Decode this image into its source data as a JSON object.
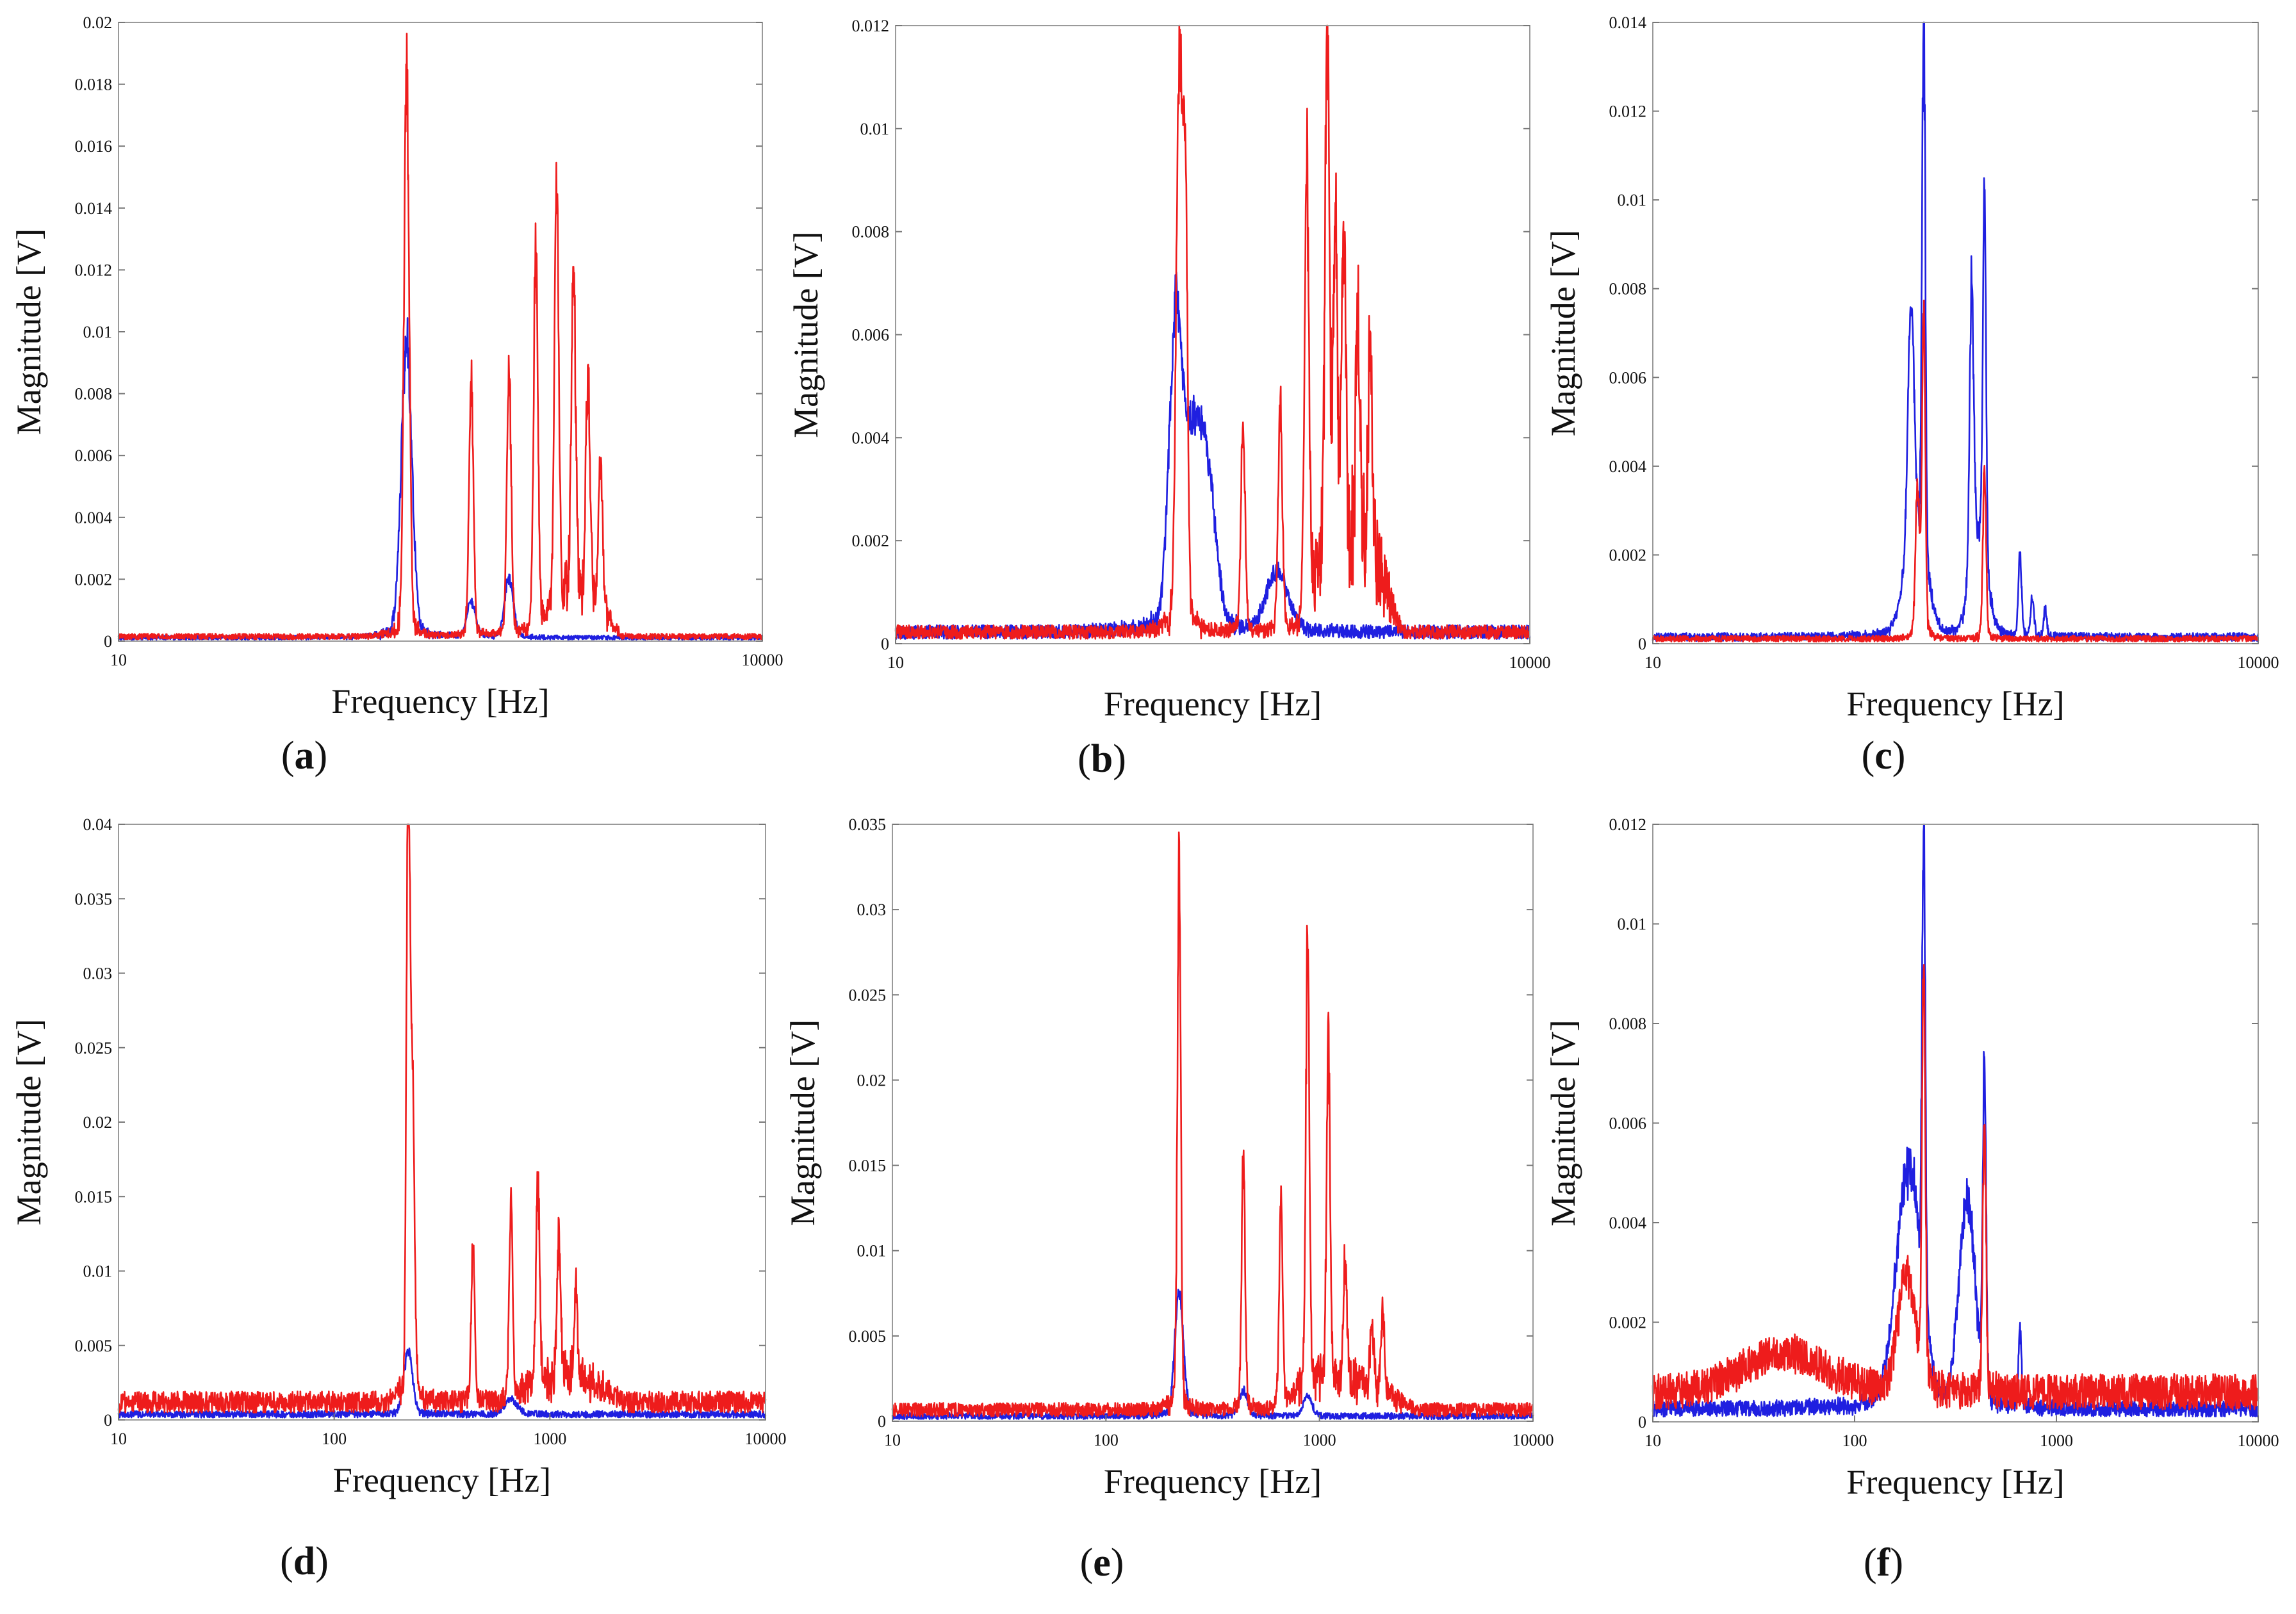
{
  "chart_data": [
    {
      "panel": "(a)",
      "label": "a",
      "type": "line",
      "xlabel": "Frequency [Hz]",
      "ylabel": "Magnitude [V]",
      "xscale": "log",
      "xlim": [
        10,
        10000
      ],
      "ylim": [
        0,
        0.02
      ],
      "xticks": [
        10,
        10000
      ],
      "xtick_labels": [
        "10",
        "10000"
      ],
      "yticks": [
        0,
        0.002,
        0.004,
        0.006,
        0.008,
        0.01,
        0.012,
        0.014,
        0.016,
        0.018,
        0.02
      ],
      "ytick_labels": [
        "0",
        "0.002",
        "0.004",
        "0.006",
        "0.008",
        "0.01",
        "0.012",
        "0.014",
        "0.016",
        "0.018",
        "0.02"
      ],
      "series": [
        {
          "name": "blue",
          "color": "#1f1fe0",
          "noise": 0.00015,
          "peaks": [
            {
              "f": 220,
              "a": 0.0098,
              "w": 0.025
            },
            {
              "f": 440,
              "a": 0.0012,
              "w": 0.02
            },
            {
              "f": 660,
              "a": 0.002,
              "w": 0.02
            }
          ]
        },
        {
          "name": "red",
          "color": "#ee1c1c",
          "noise": 0.0002,
          "peaks": [
            {
              "f": 220,
              "a": 0.0192,
              "w": 0.012
            },
            {
              "f": 440,
              "a": 0.0086,
              "w": 0.01
            },
            {
              "f": 660,
              "a": 0.009,
              "w": 0.01
            },
            {
              "f": 880,
              "a": 0.0129,
              "w": 0.01
            },
            {
              "f": 1100,
              "a": 0.0143,
              "w": 0.01
            },
            {
              "f": 1320,
              "a": 0.0108,
              "w": 0.01
            },
            {
              "f": 1540,
              "a": 0.0069,
              "w": 0.01
            },
            {
              "f": 1760,
              "a": 0.0046,
              "w": 0.01
            }
          ],
          "band": {
            "f1": 900,
            "f2": 2200,
            "a": 0.0015
          }
        }
      ]
    },
    {
      "panel": "(b)",
      "label": "b",
      "type": "line",
      "xlabel": "Frequency [Hz]",
      "ylabel": "Magnitude [V]",
      "xscale": "log",
      "xlim": [
        10,
        10000
      ],
      "ylim": [
        0,
        0.012
      ],
      "xticks": [
        10,
        10000
      ],
      "xtick_labels": [
        "10",
        "10000"
      ],
      "yticks": [
        0,
        0.002,
        0.004,
        0.006,
        0.008,
        0.01,
        0.012
      ],
      "ytick_labels": [
        "0",
        "0.002",
        "0.004",
        "0.006",
        "0.008",
        "0.01",
        "0.012"
      ],
      "series": [
        {
          "name": "blue",
          "color": "#1f1fe0",
          "noise": 0.0003,
          "peaks": [
            {
              "f": 210,
              "a": 0.0052,
              "w": 0.03
            },
            {
              "f": 250,
              "a": 0.0036,
              "w": 0.05
            },
            {
              "f": 300,
              "a": 0.0025,
              "w": 0.04
            },
            {
              "f": 640,
              "a": 0.0012,
              "w": 0.05
            }
          ]
        },
        {
          "name": "red",
          "color": "#ee1c1c",
          "noise": 0.0003,
          "peaks": [
            {
              "f": 220,
              "a": 0.0117,
              "w": 0.014
            },
            {
              "f": 235,
              "a": 0.0085,
              "w": 0.01
            },
            {
              "f": 440,
              "a": 0.0042,
              "w": 0.01
            },
            {
              "f": 660,
              "a": 0.0045,
              "w": 0.01
            },
            {
              "f": 880,
              "a": 0.009,
              "w": 0.01
            },
            {
              "f": 1100,
              "a": 0.0105,
              "w": 0.01
            },
            {
              "f": 1200,
              "a": 0.0065,
              "w": 0.01
            },
            {
              "f": 1320,
              "a": 0.0055,
              "w": 0.01
            },
            {
              "f": 1540,
              "a": 0.0047,
              "w": 0.01
            },
            {
              "f": 1760,
              "a": 0.0044,
              "w": 0.01
            }
          ],
          "band": {
            "f1": 800,
            "f2": 2500,
            "a": 0.0022
          }
        }
      ]
    },
    {
      "panel": "(c)",
      "label": "c",
      "type": "line",
      "xlabel": "Frequency [Hz]",
      "ylabel": "Magnitude [V]",
      "xscale": "log",
      "xlim": [
        10,
        10000
      ],
      "ylim": [
        0,
        0.014
      ],
      "xticks": [
        10,
        10000
      ],
      "xtick_labels": [
        "10",
        "10000"
      ],
      "yticks": [
        0,
        0.002,
        0.004,
        0.006,
        0.008,
        0.01,
        0.012,
        0.014
      ],
      "ytick_labels": [
        "0",
        "0.002",
        "0.004",
        "0.006",
        "0.008",
        "0.01",
        "0.012",
        "0.014"
      ],
      "series": [
        {
          "name": "blue",
          "color": "#1f1fe0",
          "noise": 0.0002,
          "peaks": [
            {
              "f": 190,
              "a": 0.0054,
              "w": 0.015
            },
            {
              "f": 220,
              "a": 0.0129,
              "w": 0.008
            },
            {
              "f": 200,
              "a": 0.0025,
              "w": 0.05
            },
            {
              "f": 380,
              "a": 0.0067,
              "w": 0.01
            },
            {
              "f": 440,
              "a": 0.0085,
              "w": 0.008
            },
            {
              "f": 410,
              "a": 0.0022,
              "w": 0.04
            },
            {
              "f": 660,
              "a": 0.0019,
              "w": 0.008
            },
            {
              "f": 760,
              "a": 0.0009,
              "w": 0.008
            },
            {
              "f": 880,
              "a": 0.0006,
              "w": 0.008
            }
          ]
        },
        {
          "name": "red",
          "color": "#ee1c1c",
          "noise": 0.00015,
          "peaks": [
            {
              "f": 220,
              "a": 0.0075,
              "w": 0.008
            },
            {
              "f": 205,
              "a": 0.0035,
              "w": 0.01
            },
            {
              "f": 440,
              "a": 0.0039,
              "w": 0.008
            }
          ]
        }
      ]
    },
    {
      "panel": "(d)",
      "label": "d",
      "type": "line",
      "xlabel": "Frequency [Hz]",
      "ylabel": "Magnitude [V]",
      "xscale": "log",
      "xlim": [
        10,
        10000
      ],
      "ylim": [
        0,
        0.04
      ],
      "xticks": [
        10,
        100,
        1000,
        10000
      ],
      "xtick_labels": [
        "10",
        "100",
        "1000",
        "10000"
      ],
      "yticks": [
        0,
        0.005,
        0.01,
        0.015,
        0.02,
        0.025,
        0.03,
        0.035,
        0.04
      ],
      "ytick_labels": [
        "0",
        "0.005",
        "0.01",
        "0.015",
        "0.02",
        "0.025",
        "0.03",
        "0.035",
        "0.04"
      ],
      "series": [
        {
          "name": "blue",
          "color": "#1f1fe0",
          "noise": 0.0005,
          "peaks": [
            {
              "f": 220,
              "a": 0.0045,
              "w": 0.02
            },
            {
              "f": 660,
              "a": 0.001,
              "w": 0.03
            }
          ]
        },
        {
          "name": "red",
          "color": "#ee1c1c",
          "noise": 0.0016,
          "peaks": [
            {
              "f": 220,
              "a": 0.0394,
              "w": 0.008
            },
            {
              "f": 230,
              "a": 0.022,
              "w": 0.01
            },
            {
              "f": 440,
              "a": 0.0112,
              "w": 0.008
            },
            {
              "f": 660,
              "a": 0.0137,
              "w": 0.008
            },
            {
              "f": 880,
              "a": 0.014,
              "w": 0.008
            },
            {
              "f": 1100,
              "a": 0.0102,
              "w": 0.008
            },
            {
              "f": 1320,
              "a": 0.0062,
              "w": 0.008
            }
          ],
          "band": {
            "f1": 600,
            "f2": 2200,
            "a": 0.002
          }
        }
      ]
    },
    {
      "panel": "(e)",
      "label": "e",
      "type": "line",
      "xlabel": "Frequency [Hz]",
      "ylabel": "Magnitude [V]",
      "xscale": "log",
      "xlim": [
        10,
        10000
      ],
      "ylim": [
        0,
        0.035
      ],
      "xticks": [
        10,
        100,
        1000,
        10000
      ],
      "xtick_labels": [
        "10",
        "100",
        "1000",
        "10000"
      ],
      "yticks": [
        0,
        0.005,
        0.01,
        0.015,
        0.02,
        0.025,
        0.03,
        0.035
      ],
      "ytick_labels": [
        "0",
        "0.005",
        "0.01",
        "0.015",
        "0.02",
        "0.025",
        "0.03",
        "0.035"
      ],
      "series": [
        {
          "name": "blue",
          "color": "#1f1fe0",
          "noise": 0.0004,
          "peaks": [
            {
              "f": 220,
              "a": 0.0075,
              "w": 0.02
            },
            {
              "f": 440,
              "a": 0.0015,
              "w": 0.02
            },
            {
              "f": 880,
              "a": 0.0012,
              "w": 0.02
            }
          ]
        },
        {
          "name": "red",
          "color": "#ee1c1c",
          "noise": 0.0009,
          "peaks": [
            {
              "f": 220,
              "a": 0.0325,
              "w": 0.008
            },
            {
              "f": 440,
              "a": 0.0155,
              "w": 0.008
            },
            {
              "f": 660,
              "a": 0.0125,
              "w": 0.008
            },
            {
              "f": 880,
              "a": 0.0277,
              "w": 0.008
            },
            {
              "f": 1100,
              "a": 0.0208,
              "w": 0.008
            },
            {
              "f": 1320,
              "a": 0.0072,
              "w": 0.008
            },
            {
              "f": 1760,
              "a": 0.0042,
              "w": 0.008
            },
            {
              "f": 1980,
              "a": 0.0045,
              "w": 0.008
            }
          ],
          "band": {
            "f1": 600,
            "f2": 2800,
            "a": 0.002
          }
        }
      ]
    },
    {
      "panel": "(f)",
      "label": "f",
      "type": "line",
      "xlabel": "Frequency [Hz]",
      "ylabel": "Magnitude [V]",
      "xscale": "log",
      "xlim": [
        10,
        10000
      ],
      "ylim": [
        0,
        0.012
      ],
      "xticks": [
        10,
        100,
        1000,
        10000
      ],
      "xtick_labels": [
        "10",
        "100",
        "1000",
        "10000"
      ],
      "yticks": [
        0,
        0.002,
        0.004,
        0.006,
        0.008,
        0.01,
        0.012
      ],
      "ytick_labels": [
        "0",
        "0.002",
        "0.004",
        "0.006",
        "0.008",
        "0.01",
        "0.012"
      ],
      "series": [
        {
          "name": "blue",
          "color": "#1f1fe0",
          "noise": 0.00035,
          "peaks": [
            {
              "f": 185,
              "a": 0.005,
              "w": 0.06
            },
            {
              "f": 220,
              "a": 0.0101,
              "w": 0.008
            },
            {
              "f": 360,
              "a": 0.0042,
              "w": 0.04
            },
            {
              "f": 440,
              "a": 0.007,
              "w": 0.008
            },
            {
              "f": 660,
              "a": 0.0015,
              "w": 0.008
            }
          ]
        },
        {
          "name": "red",
          "color": "#ee1c1c",
          "noise": 0.0008,
          "peaks": [
            {
              "f": 180,
              "a": 0.0025,
              "w": 0.04
            },
            {
              "f": 220,
              "a": 0.0088,
              "w": 0.008
            },
            {
              "f": 440,
              "a": 0.0055,
              "w": 0.008
            },
            {
              "f": 45,
              "a": 0.0008,
              "w": 0.2
            }
          ]
        }
      ]
    }
  ]
}
